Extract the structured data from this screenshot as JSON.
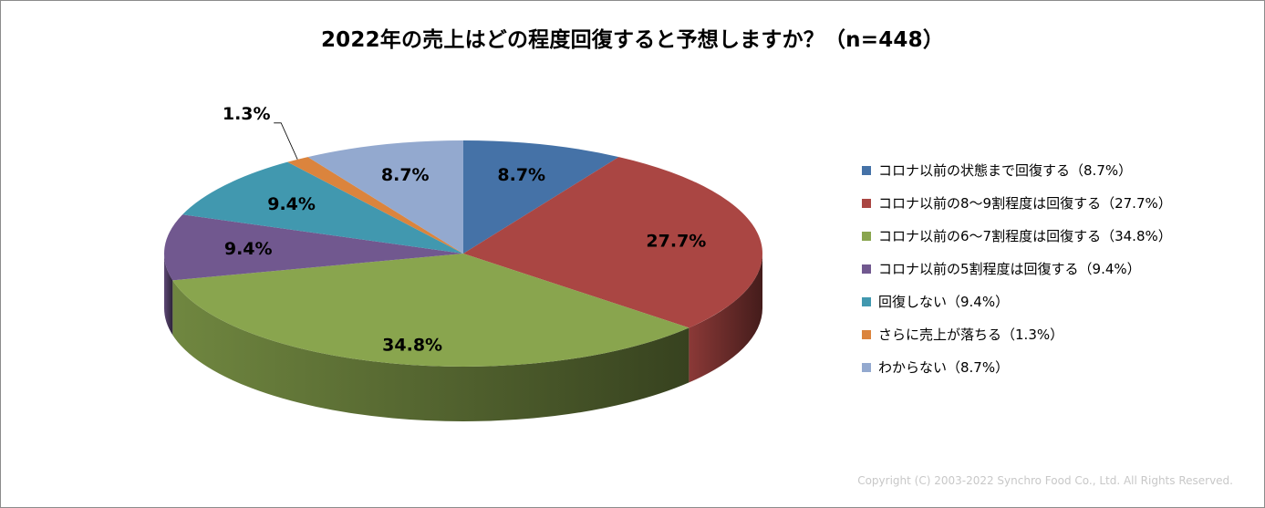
{
  "chart_data": {
    "type": "pie",
    "title": "2022年の売上はどの程度回復すると予想しますか？（n=448）",
    "slices": [
      {
        "label": "コロナ以前の状態まで回復する",
        "legend": "コロナ以前の状態まで回復する（8.7%）",
        "value": 8.7,
        "value_label": "8.7%",
        "color": "#4572A7"
      },
      {
        "label": "コロナ以前の8～9割程度は回復する",
        "legend": "コロナ以前の8～9割程度は回復する（27.7%）",
        "value": 27.7,
        "value_label": "27.7%",
        "color": "#AA4643"
      },
      {
        "label": "コロナ以前の6～7割程度は回復する",
        "legend": "コロナ以前の6～7割程度は回復する（34.8%）",
        "value": 34.8,
        "value_label": "34.8%",
        "color": "#89A54E"
      },
      {
        "label": "コロナ以前の5割程度は回復する",
        "legend": "コロナ以前の5割程度は回復する（9.4%）",
        "value": 9.4,
        "value_label": "9.4%",
        "color": "#71588F"
      },
      {
        "label": "回復しない",
        "legend": "回復しない（9.4%）",
        "value": 9.4,
        "value_label": "9.4%",
        "color": "#4198AF"
      },
      {
        "label": "さらに売上が落ちる",
        "legend": "さらに売上が落ちる（1.3%）",
        "value": 1.3,
        "value_label": "1.3%",
        "color": "#DB843D"
      },
      {
        "label": "わからない",
        "legend": "わからない（8.7%）",
        "value": 8.7,
        "value_label": "8.7%",
        "color": "#93A9CF"
      }
    ],
    "legend_position": "right"
  },
  "copyright": "Copyright (C) 2003-2022   Synchro Food Co., Ltd. All Rights Reserved."
}
